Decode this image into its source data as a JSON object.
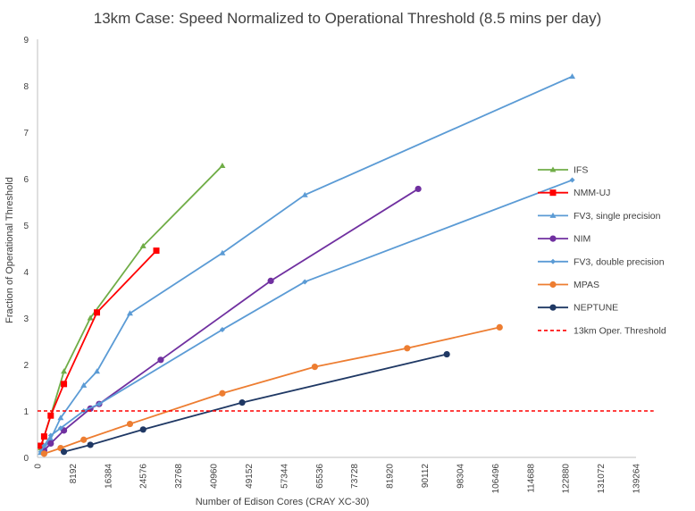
{
  "chart_data": {
    "type": "line",
    "title": "13km Case: Speed Normalized to Operational Threshold (8.5 mins per day)",
    "xlabel": "Number  of Edison Cores (CRAY XC-30)",
    "ylabel": "Fraction of Operational Threshold",
    "xlim": [
      0,
      139264
    ],
    "ylim": [
      0,
      9
    ],
    "xticks": [
      "0",
      "8192",
      "16384",
      "24576",
      "32768",
      "40960",
      "49152",
      "57344",
      "65536",
      "73728",
      "81920",
      "90112",
      "98304",
      "106496",
      "114688",
      "122880",
      "131072",
      "139264"
    ],
    "yticks": [
      "0",
      "1",
      "2",
      "3",
      "4",
      "5",
      "6",
      "7",
      "8",
      "9"
    ],
    "grid": false,
    "legend_position": "right",
    "series": [
      {
        "name": "IFS",
        "color": "#70ad47",
        "marker": "triangle",
        "x": [
          768,
          1536,
          3072,
          6144,
          12288,
          24576,
          43008
        ],
        "y": [
          0.2,
          0.45,
          0.9,
          1.85,
          3.0,
          4.55,
          6.28
        ]
      },
      {
        "name": "NMM-UJ",
        "color": "#ff0000",
        "marker": "square",
        "x": [
          768,
          1536,
          3072,
          6144,
          13824,
          27648
        ],
        "y": [
          0.25,
          0.45,
          0.9,
          1.58,
          3.12,
          4.45
        ]
      },
      {
        "name": "FV3, single precision",
        "color": "#5b9bd5",
        "marker": "triangle",
        "x": [
          768,
          1536,
          3072,
          5376,
          10752,
          13824,
          21504,
          43008,
          62208,
          124416
        ],
        "y": [
          0.1,
          0.2,
          0.4,
          0.85,
          1.55,
          1.85,
          3.1,
          4.4,
          5.65,
          8.2
        ]
      },
      {
        "name": "NIM",
        "color": "#7030a0",
        "marker": "circle",
        "x": [
          1536,
          3072,
          6144,
          12288,
          14336,
          28672,
          54272,
          88576
        ],
        "y": [
          0.15,
          0.3,
          0.58,
          1.05,
          1.15,
          2.1,
          3.8,
          5.78
        ]
      },
      {
        "name": "FV3, double precision",
        "color": "#5b9bd5",
        "marker": "diamond",
        "x": [
          768,
          1536,
          3072,
          5376,
          10752,
          14336,
          43008,
          62208,
          124416
        ],
        "y": [
          0.12,
          0.25,
          0.47,
          0.63,
          1.0,
          1.15,
          2.75,
          3.78,
          5.97
        ]
      },
      {
        "name": "MPAS",
        "color": "#ed7d31",
        "marker": "circle",
        "x": [
          1536,
          5376,
          10752,
          21504,
          43008,
          64512,
          86016,
          107520
        ],
        "y": [
          0.08,
          0.2,
          0.38,
          0.72,
          1.38,
          1.95,
          2.35,
          2.8
        ]
      },
      {
        "name": "NEPTUNE",
        "color": "#1f3864",
        "marker": "circle",
        "x": [
          6144,
          12288,
          24576,
          47616,
          95232
        ],
        "y": [
          0.12,
          0.27,
          0.6,
          1.18,
          2.22
        ]
      },
      {
        "name": "13km Oper. Threshold",
        "color": "#ff0000",
        "marker": "none",
        "dashed": true,
        "x": [
          0,
          143360
        ],
        "y": [
          1,
          1
        ]
      }
    ]
  }
}
